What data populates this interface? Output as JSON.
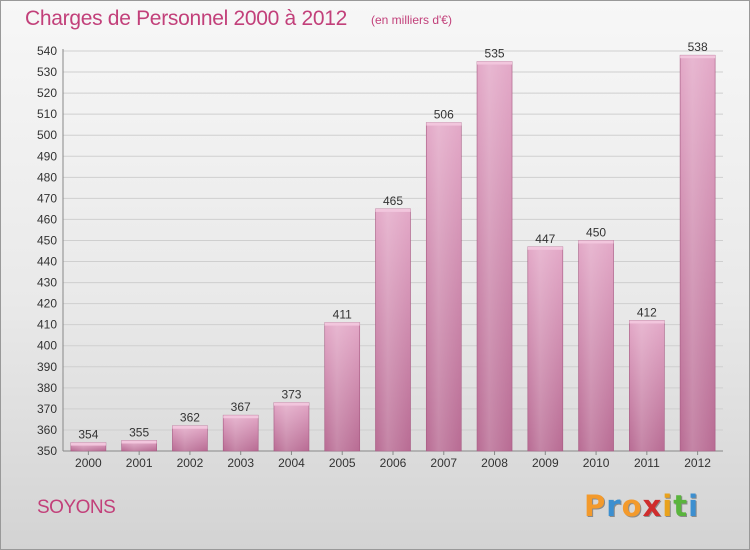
{
  "header": {
    "title": "Charges de Personnel 2000 à 2012",
    "subtitle": "(en milliers d'€)"
  },
  "footer": {
    "commune": "SOYONS",
    "logo_letters": [
      "P",
      "r",
      "o",
      "x",
      "i",
      "t",
      "i"
    ],
    "logo_colors": [
      "#f39a2c",
      "#3c8fd0",
      "#f39a2c",
      "#cf2d2d",
      "#e9a21c",
      "#5ab43d",
      "#3c8fd0"
    ]
  },
  "colors": {
    "bar_light": "#e3a8c7",
    "bar_dark": "#b86b93",
    "text": "#c2407a",
    "axis_text": "#333333",
    "grid": "#cfcfcf"
  },
  "chart_data": {
    "type": "bar",
    "title": "Charges de Personnel 2000 à 2012",
    "subtitle": "(en milliers d'€)",
    "categories": [
      "2000",
      "2001",
      "2002",
      "2003",
      "2004",
      "2005",
      "2006",
      "2007",
      "2008",
      "2009",
      "2010",
      "2011",
      "2012"
    ],
    "values": [
      354,
      355,
      362,
      367,
      373,
      411,
      465,
      506,
      535,
      447,
      450,
      412,
      538
    ],
    "ylim": [
      350,
      540
    ],
    "yticks": [
      350,
      360,
      370,
      380,
      390,
      400,
      410,
      420,
      430,
      440,
      450,
      460,
      470,
      480,
      490,
      500,
      510,
      520,
      530,
      540
    ],
    "grid": true,
    "data_labels": true
  }
}
